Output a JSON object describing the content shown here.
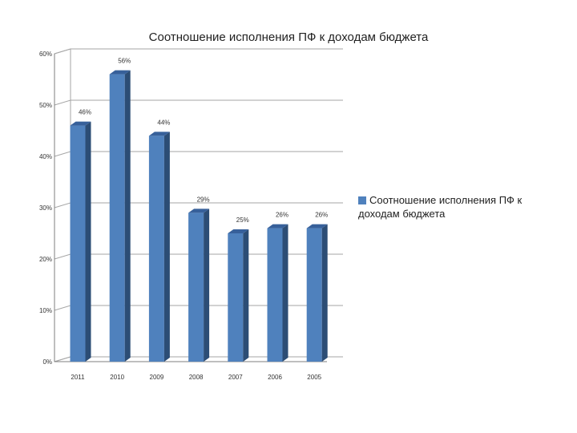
{
  "chart_data": {
    "type": "bar",
    "title": "Соотношение исполнения  ПФ к доходам бюджета",
    "categories": [
      "2011",
      "2010",
      "2009",
      "2008",
      "2007",
      "2006",
      "2005"
    ],
    "series": [
      {
        "name": "Соотношение исполнения ПФ к доходам бюджета",
        "values": [
          46,
          56,
          44,
          29,
          25,
          26,
          26
        ],
        "data_labels": [
          "46%",
          "56%",
          "44%",
          "29%",
          "25%",
          "26%",
          "26%"
        ],
        "color": "#4f81bd"
      }
    ],
    "ylim": [
      0,
      60
    ],
    "yticks": [
      "0%",
      "10%",
      "20%",
      "30%",
      "40%",
      "50%",
      "60%"
    ],
    "grid": true,
    "legend_position": "right",
    "style": "3d-column"
  }
}
